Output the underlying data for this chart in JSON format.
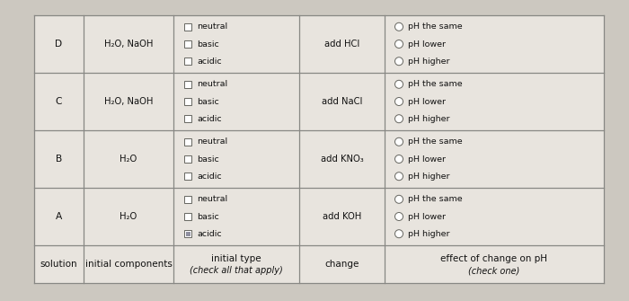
{
  "bg_color": "#ccc8c0",
  "table_bg": "#e8e4de",
  "rows": [
    "A",
    "B",
    "C",
    "D"
  ],
  "components": [
    "H₂O",
    "H₂O",
    "H₂O, NaOH",
    "H₂O, NaOH"
  ],
  "changes": [
    "add KOH",
    "add KNO₃",
    "add NaCl",
    "add HCl"
  ],
  "type_options": [
    "acidic",
    "basic",
    "neutral"
  ],
  "effect_options": [
    "pH higher",
    "pH lower",
    "pH the same"
  ],
  "checkbox_checked_row0": [
    true,
    false,
    false
  ],
  "checkbox_checked_other": [
    false,
    false,
    false
  ],
  "radio_checked": [
    false,
    false,
    false
  ],
  "header_line1": [
    "solution",
    "initial components",
    "initial type",
    "change",
    "effect of change on pH"
  ],
  "header_line2": [
    "",
    "",
    "(check all that apply)",
    "",
    "(check one)"
  ],
  "font_size_header": 7.5,
  "font_size_body": 7.2,
  "font_size_small": 6.8,
  "line_color": "#888884",
  "text_color": "#111111"
}
